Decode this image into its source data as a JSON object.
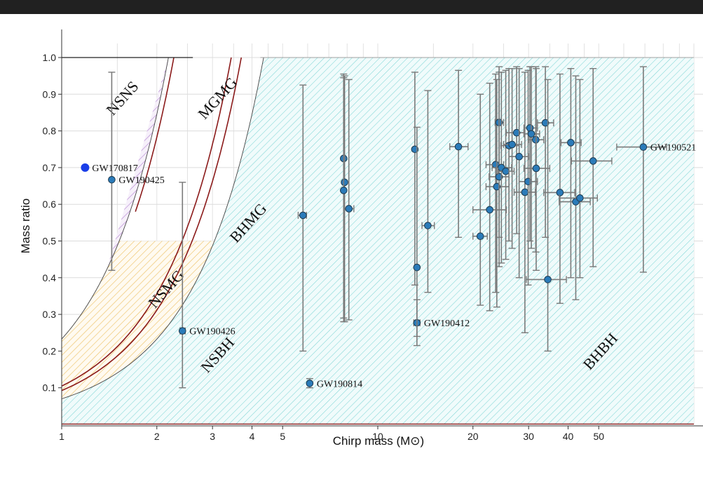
{
  "chart_data": {
    "type": "scatter",
    "title": "",
    "xlabel": "Chirp mass (M⊙)",
    "ylabel": "Mass ratio",
    "xscale": "log",
    "xlim": [
      1,
      100
    ],
    "ylim": [
      0,
      1
    ],
    "grid": true,
    "x_ticks": [
      {
        "value": 1,
        "label": "1"
      },
      {
        "value": 2,
        "label": "2"
      },
      {
        "value": 3,
        "label": "3"
      },
      {
        "value": 4,
        "label": "4"
      },
      {
        "value": 5,
        "label": "5"
      },
      {
        "value": 10,
        "label": "10"
      },
      {
        "value": 20,
        "label": "20"
      },
      {
        "value": 30,
        "label": "30"
      },
      {
        "value": 40,
        "label": "40"
      },
      {
        "value": 50,
        "label": "50"
      }
    ],
    "y_ticks": [
      {
        "value": 0.1,
        "label": "0.1"
      },
      {
        "value": 0.2,
        "label": "0.2"
      },
      {
        "value": 0.3,
        "label": "0.3"
      },
      {
        "value": 0.4,
        "label": "0.4"
      },
      {
        "value": 0.5,
        "label": "0.5"
      },
      {
        "value": 0.6,
        "label": "0.6"
      },
      {
        "value": 0.7,
        "label": "0.7"
      },
      {
        "value": 0.8,
        "label": "0.8"
      },
      {
        "value": 0.9,
        "label": "0.9"
      },
      {
        "value": 1.0,
        "label": "1.0"
      }
    ],
    "regions": [
      {
        "label": "NSNS",
        "color": "#a070c0",
        "label_at": [
          1.6,
          0.88
        ],
        "label_rotation": -48
      },
      {
        "label": "MGMG",
        "label_at": [
          3.2,
          0.88
        ],
        "label_rotation": -48
      },
      {
        "label": "BHMG",
        "label_at": [
          4.0,
          0.54
        ],
        "label_rotation": -48
      },
      {
        "label": "NSMG",
        "label_at": [
          2.2,
          0.36
        ],
        "label_rotation": -48
      },
      {
        "label": "NSBH",
        "color": "#e8b040",
        "label_at": [
          3.2,
          0.18
        ],
        "label_rotation": -48
      },
      {
        "label": "BHBH",
        "color": "#40c0c0",
        "label_at": [
          52,
          0.19
        ],
        "label_rotation": -48
      }
    ],
    "boundaries": {
      "ns_max_mass": 2.5,
      "bh_min_mass": 5
    },
    "series": [
      {
        "name": "",
        "points": [
          {
            "x": 1.186,
            "y": 0.7,
            "ylo": 0.7,
            "yhi": 0.7,
            "highlight": true,
            "label": "GW170817"
          },
          {
            "x": 1.44,
            "y": 0.667,
            "ylo": 0.42,
            "yhi": 0.96,
            "label": "GW190425"
          },
          {
            "x": 2.41,
            "y": 0.255,
            "ylo": 0.1,
            "yhi": 0.66,
            "xlo": 2.37,
            "xhi": 2.46,
            "label": "GW190426"
          },
          {
            "x": 6.09,
            "y": 0.112,
            "ylo": 0.1,
            "yhi": 0.125,
            "xlo": 6.02,
            "xhi": 6.15,
            "label": "GW190814"
          },
          {
            "x": 13.3,
            "y": 0.277,
            "ylo": 0.215,
            "yhi": 0.34,
            "xlo": 13.0,
            "xhi": 13.6,
            "label": "GW190412"
          },
          {
            "x": 69.2,
            "y": 0.756,
            "ylo": 0.415,
            "yhi": 0.975,
            "xlo": 57,
            "xhi": 82,
            "label": "GW190521"
          },
          {
            "x": 5.8,
            "y": 0.57,
            "ylo": 0.2,
            "yhi": 0.925,
            "xlo": 5.6,
            "xhi": 5.95
          },
          {
            "x": 7.8,
            "y": 0.725,
            "ylo": 0.29,
            "yhi": 0.955
          },
          {
            "x": 7.85,
            "y": 0.66,
            "ylo": 0.28,
            "yhi": 0.95
          },
          {
            "x": 7.8,
            "y": 0.638,
            "ylo": 0.28,
            "yhi": 0.945
          },
          {
            "x": 8.1,
            "y": 0.588,
            "ylo": 0.285,
            "yhi": 0.94,
            "xlo": 7.85,
            "xhi": 8.4
          },
          {
            "x": 13.1,
            "y": 0.75,
            "ylo": 0.38,
            "yhi": 0.96
          },
          {
            "x": 13.3,
            "y": 0.428,
            "ylo": 0.24,
            "yhi": 0.81
          },
          {
            "x": 14.4,
            "y": 0.542,
            "ylo": 0.36,
            "yhi": 0.91,
            "xlo": 13.8,
            "xhi": 15.1
          },
          {
            "x": 18.0,
            "y": 0.757,
            "ylo": 0.51,
            "yhi": 0.965,
            "xlo": 16.9,
            "xhi": 19.3
          },
          {
            "x": 21.1,
            "y": 0.513,
            "ylo": 0.325,
            "yhi": 0.9,
            "xlo": 20.0,
            "xhi": 22.2
          },
          {
            "x": 22.6,
            "y": 0.585,
            "ylo": 0.31,
            "yhi": 0.93,
            "xlo": 20.0,
            "xhi": 25.5
          },
          {
            "x": 23.6,
            "y": 0.708,
            "ylo": 0.36,
            "yhi": 0.955,
            "xlo": 22.0,
            "xhi": 25.0
          },
          {
            "x": 23.8,
            "y": 0.648,
            "ylo": 0.32,
            "yhi": 0.94,
            "xlo": 22.0,
            "xhi": 26.0
          },
          {
            "x": 24.2,
            "y": 0.823,
            "ylo": 0.51,
            "yhi": 0.975,
            "xlo": 23.5,
            "xhi": 25.0
          },
          {
            "x": 24.2,
            "y": 0.675,
            "ylo": 0.43,
            "yhi": 0.96,
            "xlo": 22.5,
            "xhi": 26.0
          },
          {
            "x": 24.6,
            "y": 0.7,
            "ylo": 0.44,
            "yhi": 0.96,
            "xlo": 23.0,
            "xhi": 26.5
          },
          {
            "x": 25.4,
            "y": 0.69,
            "ylo": 0.45,
            "yhi": 0.965,
            "xlo": 24.0,
            "xhi": 27.0
          },
          {
            "x": 26.0,
            "y": 0.76,
            "ylo": 0.5,
            "yhi": 0.97,
            "xlo": 24.5,
            "xhi": 28.0
          },
          {
            "x": 26.6,
            "y": 0.763,
            "ylo": 0.48,
            "yhi": 0.97,
            "xlo": 25.0,
            "xhi": 28.5
          },
          {
            "x": 27.5,
            "y": 0.795,
            "ylo": 0.52,
            "yhi": 0.975,
            "xlo": 25.5,
            "xhi": 29.0
          },
          {
            "x": 28.0,
            "y": 0.73,
            "ylo": 0.4,
            "yhi": 0.97,
            "xlo": 26.0,
            "xhi": 30.0
          },
          {
            "x": 29.2,
            "y": 0.633,
            "ylo": 0.25,
            "yhi": 0.96,
            "xlo": 27.0,
            "xhi": 31.5
          },
          {
            "x": 29.9,
            "y": 0.662,
            "ylo": 0.38,
            "yhi": 0.965,
            "xlo": 28.0,
            "xhi": 32.0
          },
          {
            "x": 30.3,
            "y": 0.808,
            "ylo": 0.5,
            "yhi": 0.975,
            "xlo": 29.0,
            "xhi": 32.0
          },
          {
            "x": 30.6,
            "y": 0.792,
            "ylo": 0.48,
            "yhi": 0.975,
            "xlo": 29.0,
            "xhi": 32.5
          },
          {
            "x": 31.6,
            "y": 0.776,
            "ylo": 0.47,
            "yhi": 0.975,
            "xlo": 30.0,
            "xhi": 33.5
          },
          {
            "x": 31.7,
            "y": 0.698,
            "ylo": 0.42,
            "yhi": 0.97,
            "xlo": 29.0,
            "xhi": 35.0
          },
          {
            "x": 33.9,
            "y": 0.822,
            "ylo": 0.51,
            "yhi": 0.975,
            "xlo": 32.0,
            "xhi": 36.0
          },
          {
            "x": 34.5,
            "y": 0.395,
            "ylo": 0.2,
            "yhi": 0.94,
            "xlo": 29.5,
            "xhi": 39.5
          },
          {
            "x": 37.7,
            "y": 0.632,
            "ylo": 0.33,
            "yhi": 0.955,
            "xlo": 33.5,
            "xhi": 42.0
          },
          {
            "x": 40.8,
            "y": 0.768,
            "ylo": 0.4,
            "yhi": 0.97,
            "xlo": 38.0,
            "xhi": 44.0
          },
          {
            "x": 42.3,
            "y": 0.607,
            "ylo": 0.34,
            "yhi": 0.95,
            "xlo": 37.5,
            "xhi": 47.0
          },
          {
            "x": 43.6,
            "y": 0.617,
            "ylo": 0.4,
            "yhi": 0.94,
            "xlo": 37.5,
            "xhi": 49.5
          },
          {
            "x": 48.0,
            "y": 0.718,
            "ylo": 0.43,
            "yhi": 0.97,
            "xlo": 41.0,
            "xhi": 55.0
          }
        ]
      }
    ]
  }
}
